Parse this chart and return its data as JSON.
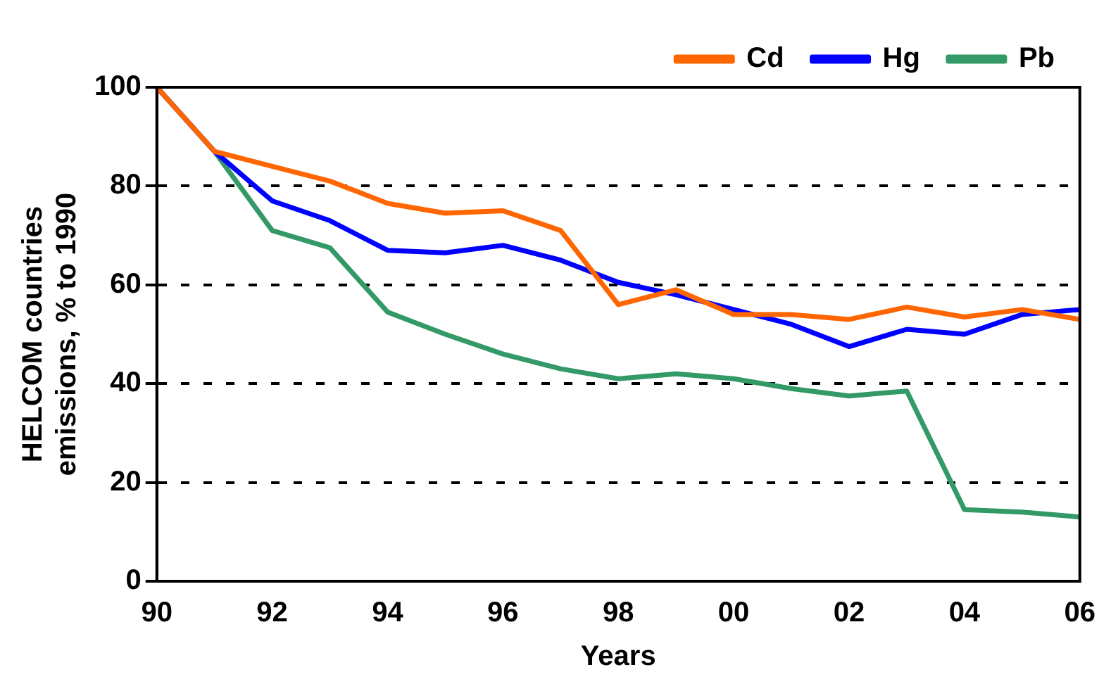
{
  "chart_data": {
    "type": "line",
    "xlabel": "Years",
    "ylabel": "HELCOM countries emissions, % to 1990",
    "categories": [
      "90",
      null,
      "92",
      null,
      "94",
      null,
      "96",
      null,
      "98",
      null,
      "00",
      null,
      "02",
      null,
      "04",
      null,
      "06"
    ],
    "series": [
      {
        "name": "Cd",
        "color": "#ff6600",
        "values": [
          100,
          87,
          84,
          81,
          76.5,
          74.5,
          75,
          71,
          56,
          59,
          54,
          54,
          53,
          55.5,
          53.5,
          55,
          53
        ]
      },
      {
        "name": "Hg",
        "color": "#0000ff",
        "values": [
          100,
          87,
          77,
          73,
          67,
          66.5,
          68,
          65,
          60.5,
          58,
          55,
          52,
          47.5,
          51,
          50,
          54,
          55
        ]
      },
      {
        "name": "Pb",
        "color": "#339966",
        "values": [
          100,
          87,
          71,
          67.5,
          54.5,
          50,
          46,
          43,
          41,
          42,
          41,
          39,
          37.5,
          38.5,
          14.5,
          14,
          13
        ]
      }
    ],
    "ylim": [
      0,
      100
    ],
    "yticks": [
      0,
      20,
      40,
      60,
      80,
      100
    ],
    "grid": "y",
    "legend": "top right",
    "marker": "none",
    "line_style": "solid"
  }
}
